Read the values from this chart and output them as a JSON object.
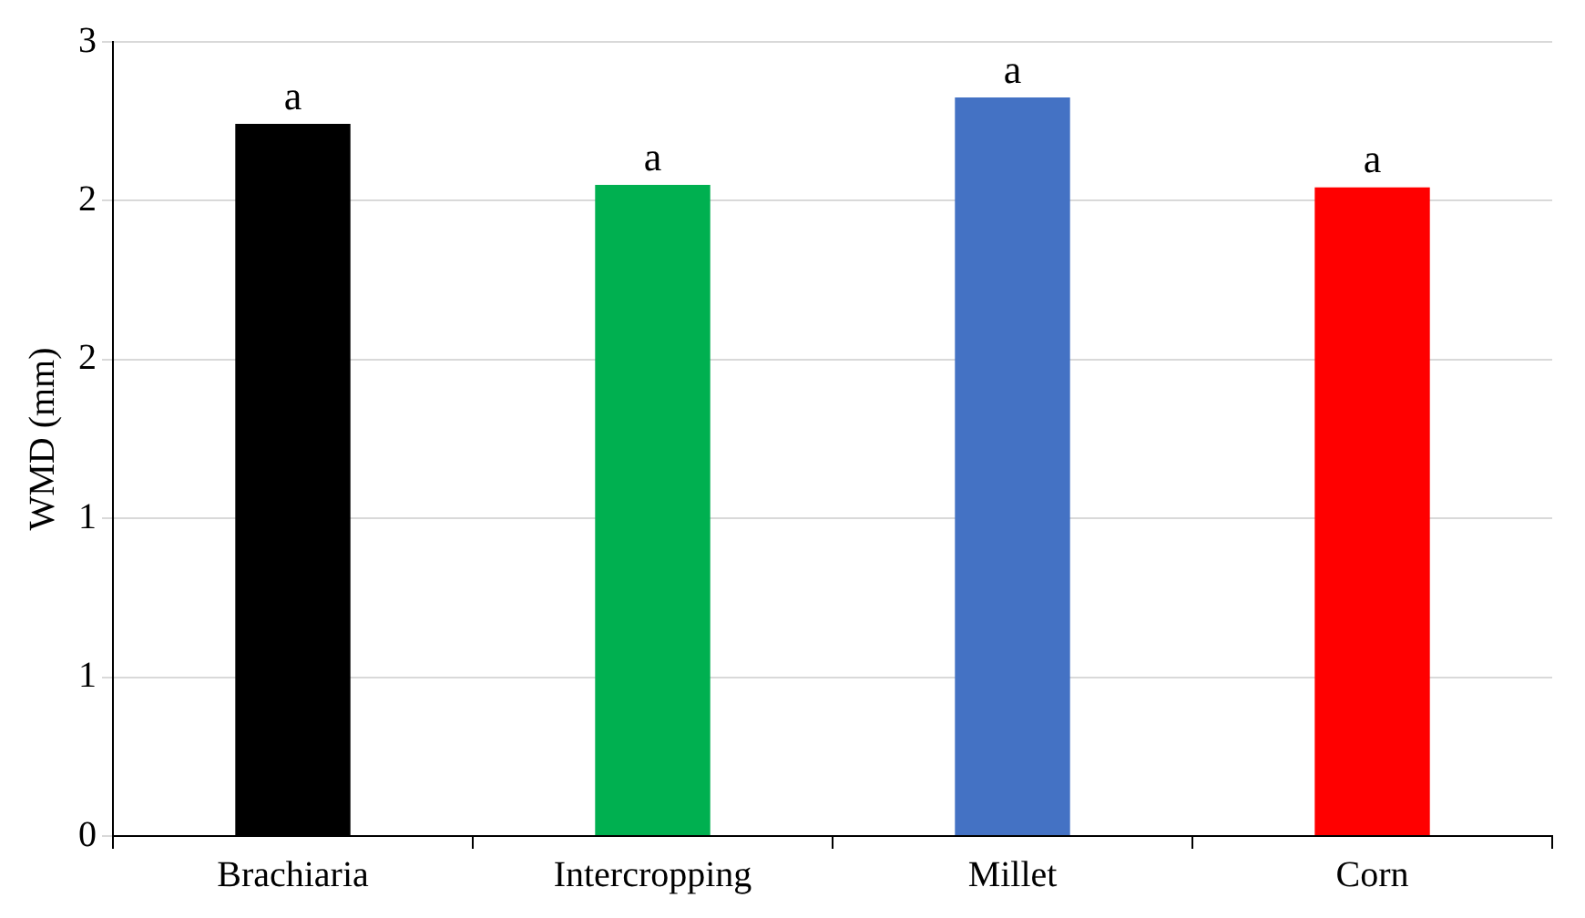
{
  "chart_data": {
    "type": "bar",
    "ylabel": "WMD (mm)",
    "categories": [
      "Brachiaria",
      "Intercropping",
      "Millet",
      "Corn"
    ],
    "values": [
      2.69,
      2.46,
      2.79,
      2.45
    ],
    "colors": [
      "#000000",
      "#00b050",
      "#4472c4",
      "#ff0000"
    ],
    "ylim": [
      0,
      3
    ],
    "yticks": [
      0,
      {
        "value": 0.6,
        "label": "1"
      },
      {
        "value": 1.2,
        "label": "1"
      },
      {
        "value": 1.8,
        "label": "2"
      },
      {
        "value": 2.4,
        "label": "2"
      },
      3
    ],
    "grid": "y",
    "legend": false,
    "annotations": [
      {
        "text": "a",
        "x": "Brachiaria",
        "y": 2.69
      },
      {
        "text": "a",
        "x": "Intercropping",
        "y": 2.46
      },
      {
        "text": "a",
        "x": "Millet",
        "y": 2.79
      },
      {
        "text": "a",
        "x": "Corn",
        "y": 2.45
      }
    ]
  }
}
